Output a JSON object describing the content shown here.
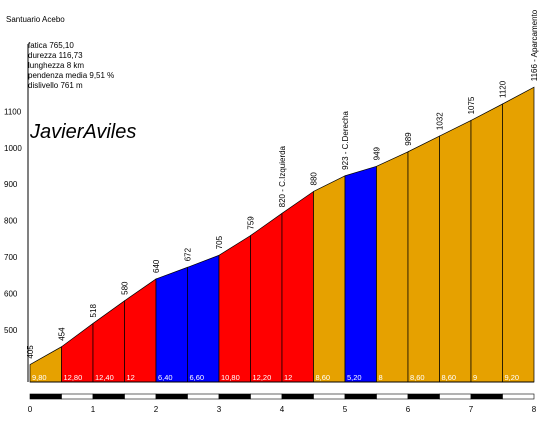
{
  "header": {
    "title": "Santuario Acebo",
    "stats": [
      "fatica 765,10",
      "durezza 116,73",
      "lunghezza 8 km",
      "pendenza media 9,51 %",
      "dislivello 761 m"
    ],
    "brand": "JavierAviles"
  },
  "colors": {
    "orange": "#E6A100",
    "red": "#FF0000",
    "blue": "#0000FF",
    "text": "#000000"
  },
  "chart_data": {
    "type": "area",
    "title": "Santuario Acebo",
    "xlabel": "",
    "ylabel": "",
    "xlim": [
      0,
      8
    ],
    "ylim": [
      370,
      1200
    ],
    "x_ticks": [
      0,
      1,
      2,
      3,
      4,
      5,
      6,
      7,
      8
    ],
    "y_ticks": [
      500,
      600,
      700,
      800,
      900,
      1000,
      1100
    ],
    "profile_points": [
      {
        "x": 0,
        "y": 405,
        "label": "405"
      },
      {
        "x": 0.5,
        "y": 454,
        "label": "454"
      },
      {
        "x": 1,
        "y": 518,
        "label": "518"
      },
      {
        "x": 1.5,
        "y": 580,
        "label": "580"
      },
      {
        "x": 2,
        "y": 640,
        "label": "640"
      },
      {
        "x": 2.5,
        "y": 672,
        "label": "672"
      },
      {
        "x": 3,
        "y": 705,
        "label": "705"
      },
      {
        "x": 3.5,
        "y": 759,
        "label": "759"
      },
      {
        "x": 4,
        "y": 820,
        "label": "820 - C.Izquierda"
      },
      {
        "x": 4.5,
        "y": 880,
        "label": "880"
      },
      {
        "x": 5,
        "y": 923,
        "label": "923 - C.Derecha"
      },
      {
        "x": 5.5,
        "y": 949,
        "label": "949"
      },
      {
        "x": 6,
        "y": 989,
        "label": "989"
      },
      {
        "x": 6.5,
        "y": 1032,
        "label": "1032"
      },
      {
        "x": 7,
        "y": 1075,
        "label": "1075"
      },
      {
        "x": 7.5,
        "y": 1120,
        "label": "1120"
      },
      {
        "x": 8,
        "y": 1166,
        "label": "1166 - Aparcamento"
      }
    ],
    "segments": [
      {
        "from": 0,
        "to": 0.5,
        "grade": "9,80",
        "color": "orange"
      },
      {
        "from": 0.5,
        "to": 1,
        "grade": "12,80",
        "color": "red"
      },
      {
        "from": 1,
        "to": 1.5,
        "grade": "12,40",
        "color": "red"
      },
      {
        "from": 1.5,
        "to": 2,
        "grade": "12",
        "color": "red"
      },
      {
        "from": 2,
        "to": 2.5,
        "grade": "6,40",
        "color": "blue"
      },
      {
        "from": 2.5,
        "to": 3,
        "grade": "6,60",
        "color": "blue"
      },
      {
        "from": 3,
        "to": 3.5,
        "grade": "10,80",
        "color": "red"
      },
      {
        "from": 3.5,
        "to": 4,
        "grade": "12,20",
        "color": "red"
      },
      {
        "from": 4,
        "to": 4.5,
        "grade": "12",
        "color": "red"
      },
      {
        "from": 4.5,
        "to": 5,
        "grade": "8,60",
        "color": "orange"
      },
      {
        "from": 5,
        "to": 5.5,
        "grade": "5,20",
        "color": "blue"
      },
      {
        "from": 5.5,
        "to": 6,
        "grade": "8",
        "color": "orange"
      },
      {
        "from": 6,
        "to": 6.5,
        "grade": "8,60",
        "color": "orange"
      },
      {
        "from": 6.5,
        "to": 7,
        "grade": "8,60",
        "color": "orange"
      },
      {
        "from": 7,
        "to": 7.5,
        "grade": "9",
        "color": "orange"
      },
      {
        "from": 7.5,
        "to": 8,
        "grade": "9,20",
        "color": "orange"
      }
    ]
  }
}
